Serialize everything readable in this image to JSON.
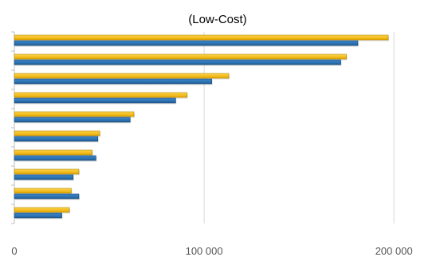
{
  "chart_data": {
    "type": "bar",
    "orientation": "horizontal",
    "title": "(Low-Cost)",
    "xlabel": "",
    "ylabel": "",
    "xlim": [
      0,
      210000
    ],
    "x_ticks": [
      0,
      100000,
      200000
    ],
    "x_tick_labels": [
      "0",
      "100 000",
      "200 000"
    ],
    "grid": true,
    "legend": "none",
    "categories": [
      "",
      "",
      "",
      "",
      "",
      "",
      "",
      "",
      "",
      ""
    ],
    "series": [
      {
        "color": "#FFC000",
        "values": [
          197000,
          175000,
          113000,
          91000,
          63000,
          45000,
          41000,
          34000,
          30000,
          29000
        ]
      },
      {
        "color": "#2E75B6",
        "values": [
          181000,
          172000,
          104000,
          85000,
          61000,
          44000,
          43000,
          31000,
          34000,
          25000
        ]
      }
    ]
  }
}
